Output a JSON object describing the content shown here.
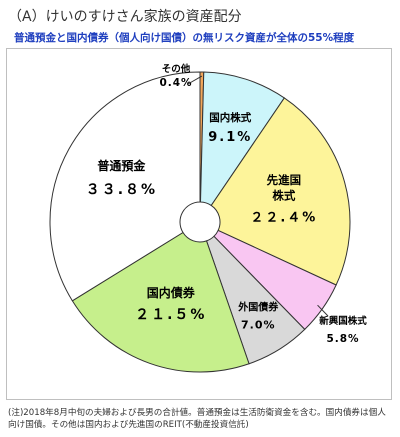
{
  "header": {
    "title": "（A）けいのすけさん家族の資産配分",
    "subtitle": "普通預金と国内債券（個人向け国債）の無リスク資産が全体の55%程度"
  },
  "chart_data": {
    "type": "pie",
    "style": "donut",
    "start": "12 o'clock",
    "direction": "clockwise",
    "slices": [
      {
        "name": "その他",
        "label": "その他",
        "value": 0.4,
        "value_label": "0.4%",
        "color": "#f2a65a"
      },
      {
        "name": "国内株式",
        "label": "国内株式",
        "value": 9.1,
        "value_label": "9.1%",
        "color": "#ccf5fa"
      },
      {
        "name": "先進国株式",
        "label": "先進国\n株式",
        "value": 22.4,
        "value_label": "２２.４%",
        "color": "#fdf49a"
      },
      {
        "name": "新興国株式",
        "label": "新興国株式",
        "value": 5.8,
        "value_label": "5.8%",
        "color": "#f9c6f2"
      },
      {
        "name": "外国債券",
        "label": "外国債券",
        "value": 7.0,
        "value_label": "7.0%",
        "color": "#d9d9d9"
      },
      {
        "name": "国内債券",
        "label": "国内債券",
        "value": 21.5,
        "value_label": "２１.５%",
        "color": "#c6ef8c"
      },
      {
        "name": "普通預金",
        "label": "普通預金",
        "value": 33.8,
        "value_label": "３３.８%",
        "color": "#ffffff"
      }
    ]
  },
  "footnote": "(注)2018年8月中旬の夫婦および長男の合計値。普通預金は生活防衛資金を含む。国内債券は個人向け国債。その他は国内および先進国のREIT(不動産投資信託)"
}
